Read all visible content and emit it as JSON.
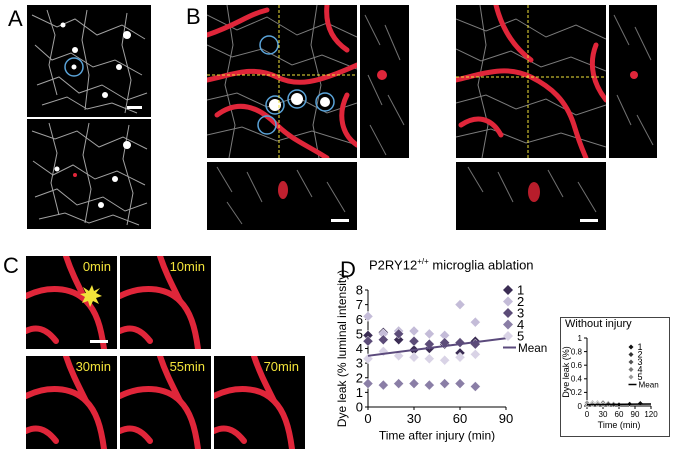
{
  "panels": {
    "A": "A",
    "B": "B",
    "C": "C",
    "D": "D"
  },
  "panel_c": {
    "times": [
      "0min",
      "10min",
      "30min",
      "55min",
      "70min"
    ]
  },
  "chart_main": {
    "title": "P2RY12",
    "title_sup": "+/+",
    "title_rest": " microglia ablation"
  },
  "chart_inset": {
    "title": "Without injury"
  },
  "chart_data": [
    {
      "type": "scatter",
      "xlabel": "Time after injury (min)",
      "ylabel": "Dye leak (% luminal intensity)",
      "xlim": [
        0,
        90
      ],
      "ylim": [
        0,
        8
      ],
      "xticks": [
        0,
        30,
        60,
        90
      ],
      "yticks": [
        0,
        1,
        2,
        3,
        4,
        5,
        6,
        7,
        8
      ],
      "legend_position": "right",
      "series": [
        {
          "name": "1",
          "color": "#3b2d54",
          "points": [
            [
              0,
              4.9
            ],
            [
              10,
              5.1
            ],
            [
              20,
              4.6
            ],
            [
              30,
              3.9
            ],
            [
              40,
              4.0
            ],
            [
              50,
              4.3
            ],
            [
              60,
              3.7
            ],
            [
              70,
              4.5
            ]
          ]
        },
        {
          "name": "2",
          "color": "#c4bcd8",
          "points": [
            [
              0,
              6.2
            ],
            [
              10,
              5.0
            ],
            [
              20,
              5.2
            ],
            [
              30,
              5.2
            ],
            [
              40,
              5.0
            ],
            [
              50,
              4.9
            ],
            [
              60,
              7.0
            ],
            [
              70,
              5.8
            ]
          ]
        },
        {
          "name": "3",
          "color": "#5c4c78",
          "points": [
            [
              0,
              4.5
            ],
            [
              10,
              4.6
            ],
            [
              20,
              5.0
            ],
            [
              30,
              4.5
            ],
            [
              40,
              4.3
            ],
            [
              50,
              4.4
            ],
            [
              60,
              4.4
            ],
            [
              70,
              4.3
            ]
          ]
        },
        {
          "name": "4",
          "color": "#8a7ea6",
          "points": [
            [
              0,
              1.6
            ],
            [
              10,
              1.5
            ],
            [
              20,
              1.6
            ],
            [
              30,
              1.6
            ],
            [
              40,
              1.5
            ],
            [
              50,
              1.6
            ],
            [
              60,
              1.6
            ],
            [
              70,
              1.4
            ]
          ]
        },
        {
          "name": "5",
          "color": "#d9d3e6",
          "points": [
            [
              0,
              3.3
            ],
            [
              10,
              3.8
            ],
            [
              20,
              3.5
            ],
            [
              30,
              3.4
            ],
            [
              40,
              3.3
            ],
            [
              50,
              3.2
            ],
            [
              60,
              3.4
            ],
            [
              70,
              3.6
            ]
          ]
        }
      ],
      "mean": {
        "name": "Mean",
        "color": "#5b4a7c",
        "line": [
          [
            0,
            3.5
          ],
          [
            90,
            4.7
          ]
        ]
      }
    },
    {
      "type": "scatter",
      "title": "Without injury",
      "xlabel": "Time (min)",
      "ylabel": "Dye leak (%)",
      "xlim": [
        0,
        120
      ],
      "ylim": [
        0,
        1
      ],
      "xticks": [
        0,
        30,
        60,
        90,
        120
      ],
      "yticks": [
        0,
        0.2,
        0.4,
        0.6,
        0.8,
        1
      ],
      "legend_position": "right",
      "series": [
        {
          "name": "1",
          "color": "#111111",
          "points": [
            [
              0,
              0.02
            ],
            [
              10,
              0.05
            ],
            [
              20,
              0.03
            ],
            [
              30,
              0.04
            ],
            [
              40,
              0.02
            ],
            [
              50,
              0.03
            ],
            [
              60,
              0.02
            ],
            [
              80,
              0.03
            ],
            [
              100,
              0.04
            ]
          ]
        },
        {
          "name": "2",
          "color": "#333333",
          "points": [
            [
              0,
              0.03
            ],
            [
              10,
              0.04
            ],
            [
              20,
              0.05
            ],
            [
              30,
              0.03
            ],
            [
              40,
              0.04
            ],
            [
              50,
              0.02
            ]
          ]
        },
        {
          "name": "3",
          "color": "#555555",
          "points": [
            [
              0,
              0.04
            ],
            [
              10,
              0.03
            ],
            [
              20,
              0.02
            ],
            [
              30,
              0.05
            ],
            [
              40,
              0.03
            ]
          ]
        },
        {
          "name": "4",
          "color": "#777777",
          "points": [
            [
              0,
              0.02
            ],
            [
              10,
              0.02
            ],
            [
              20,
              0.04
            ],
            [
              30,
              0.03
            ]
          ]
        },
        {
          "name": "5",
          "color": "#999999",
          "points": [
            [
              0,
              0.05
            ],
            [
              10,
              0.03
            ],
            [
              20,
              0.03
            ],
            [
              30,
              0.02
            ]
          ]
        }
      ],
      "mean": {
        "name": "Mean",
        "color": "#000000",
        "line": [
          [
            0,
            0.02
          ],
          [
            120,
            0.03
          ]
        ]
      }
    }
  ]
}
